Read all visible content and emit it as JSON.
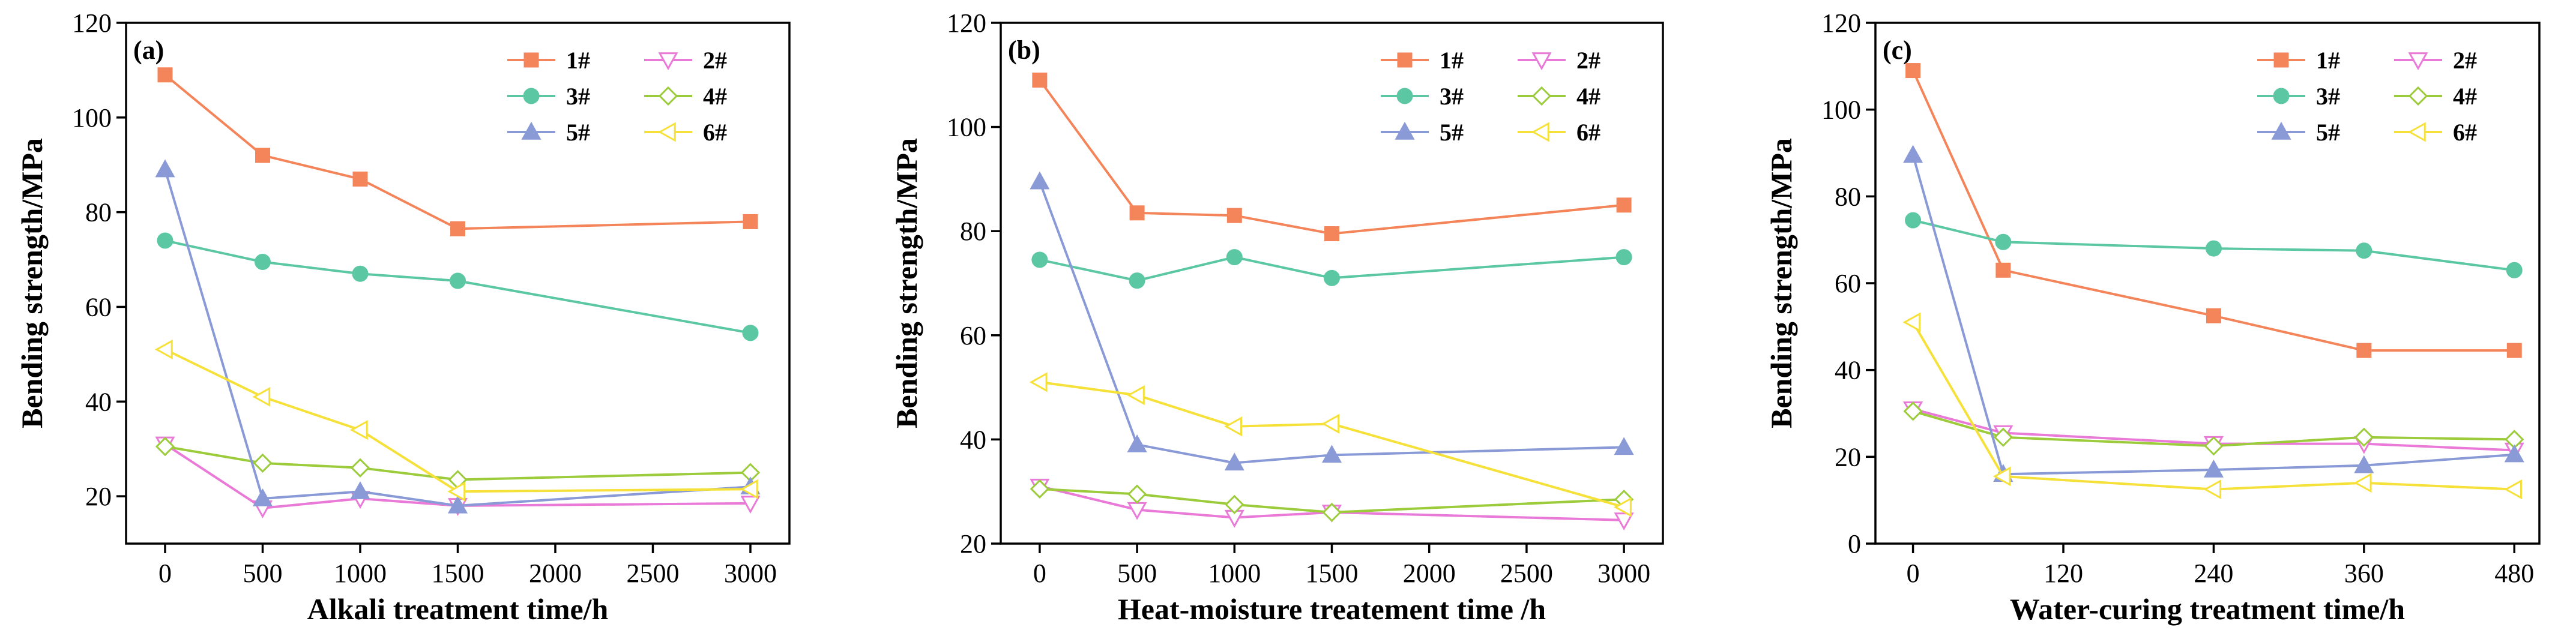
{
  "chart_data": [
    {
      "type": "line",
      "panel_label": "(a)",
      "xlabel": "Alkali treatment time/h",
      "ylabel": "Bending strength/MPa",
      "xlim": [
        -200,
        3200
      ],
      "ylim": [
        10,
        120
      ],
      "xticks": [
        0,
        500,
        1000,
        1500,
        2000,
        2500,
        3000
      ],
      "yticks": [
        20,
        40,
        60,
        80,
        100,
        120
      ],
      "legend_position": "top-right",
      "series": [
        {
          "name": "1#",
          "color": "#f4845a",
          "marker": "square",
          "x": [
            0,
            500,
            1000,
            1500,
            3000
          ],
          "values": [
            109,
            92,
            87,
            76.5,
            78
          ]
        },
        {
          "name": "2#",
          "color": "#e97ad8",
          "marker": "triangle-down",
          "x": [
            0,
            500,
            1000,
            1500,
            3000
          ],
          "values": [
            31,
            17.5,
            19.5,
            18,
            18.5
          ]
        },
        {
          "name": "3#",
          "color": "#5cc8a3",
          "marker": "circle",
          "x": [
            0,
            500,
            1000,
            1500,
            3000
          ],
          "values": [
            74,
            69.5,
            67,
            65.5,
            54.5
          ]
        },
        {
          "name": "4#",
          "color": "#9ccc3c",
          "marker": "diamond",
          "x": [
            0,
            500,
            1000,
            1500,
            3000
          ],
          "values": [
            30.5,
            27,
            26,
            23.5,
            25
          ]
        },
        {
          "name": "5#",
          "color": "#8a9ad6",
          "marker": "triangle-up",
          "x": [
            0,
            500,
            1000,
            1500,
            3000
          ],
          "values": [
            89,
            19.5,
            21,
            18,
            22
          ]
        },
        {
          "name": "6#",
          "color": "#f5e139",
          "marker": "triangle-left",
          "x": [
            0,
            500,
            1000,
            1500,
            3000
          ],
          "values": [
            51,
            41,
            34,
            21,
            21.5
          ]
        }
      ]
    },
    {
      "type": "line",
      "panel_label": "(b)",
      "xlabel": "Heat-moisture treatement time /h",
      "ylabel": "Bending strength/MPa",
      "xlim": [
        -200,
        3200
      ],
      "ylim": [
        20,
        120
      ],
      "xticks": [
        0,
        500,
        1000,
        1500,
        2000,
        2500,
        3000
      ],
      "yticks": [
        20,
        40,
        60,
        80,
        100,
        120
      ],
      "legend_position": "top-right",
      "series": [
        {
          "name": "1#",
          "color": "#f4845a",
          "marker": "square",
          "x": [
            0,
            500,
            1000,
            1500,
            3000
          ],
          "values": [
            109,
            83.5,
            83,
            79.5,
            85
          ]
        },
        {
          "name": "2#",
          "color": "#e97ad8",
          "marker": "triangle-down",
          "x": [
            0,
            500,
            1000,
            1500,
            3000
          ],
          "values": [
            31,
            26.5,
            25,
            26,
            24.5
          ]
        },
        {
          "name": "3#",
          "color": "#5cc8a3",
          "marker": "circle",
          "x": [
            0,
            500,
            1000,
            1500,
            3000
          ],
          "values": [
            74.5,
            70.5,
            75,
            71,
            75
          ]
        },
        {
          "name": "4#",
          "color": "#9ccc3c",
          "marker": "diamond",
          "x": [
            0,
            500,
            1000,
            1500,
            3000
          ],
          "values": [
            30.5,
            29.5,
            27.5,
            26,
            28.5
          ]
        },
        {
          "name": "5#",
          "color": "#8a9ad6",
          "marker": "triangle-up",
          "x": [
            0,
            500,
            1000,
            1500,
            3000
          ],
          "values": [
            89.5,
            39,
            35.5,
            37,
            38.5
          ]
        },
        {
          "name": "6#",
          "color": "#f5e139",
          "marker": "triangle-left",
          "x": [
            0,
            500,
            1000,
            1500,
            3000
          ],
          "values": [
            51,
            48.5,
            42.5,
            43,
            27
          ]
        }
      ]
    },
    {
      "type": "line",
      "panel_label": "(c)",
      "xlabel": "Water-curing treatment time/h",
      "ylabel": "Bending strength/MPa",
      "xlim": [
        -30,
        500
      ],
      "ylim": [
        0,
        120
      ],
      "xticks": [
        0,
        120,
        240,
        360,
        480
      ],
      "yticks": [
        0,
        20,
        40,
        60,
        80,
        100,
        120
      ],
      "legend_position": "top-right",
      "series": [
        {
          "name": "1#",
          "color": "#f4845a",
          "marker": "square",
          "x": [
            0,
            72,
            240,
            360,
            480
          ],
          "values": [
            109,
            63,
            52.5,
            44.5,
            44.5
          ]
        },
        {
          "name": "2#",
          "color": "#e97ad8",
          "marker": "triangle-down",
          "x": [
            0,
            72,
            240,
            360,
            480
          ],
          "values": [
            31,
            25.5,
            23,
            23,
            21.5
          ]
        },
        {
          "name": "3#",
          "color": "#5cc8a3",
          "marker": "circle",
          "x": [
            0,
            72,
            240,
            360,
            480
          ],
          "values": [
            74.5,
            69.5,
            68,
            67.5,
            63
          ]
        },
        {
          "name": "4#",
          "color": "#9ccc3c",
          "marker": "diamond",
          "x": [
            0,
            72,
            240,
            360,
            480
          ],
          "values": [
            30.5,
            24.5,
            22.5,
            24.5,
            24
          ]
        },
        {
          "name": "5#",
          "color": "#8a9ad6",
          "marker": "triangle-up",
          "x": [
            0,
            72,
            240,
            360,
            480
          ],
          "values": [
            89.5,
            16,
            17,
            18,
            20.5
          ]
        },
        {
          "name": "6#",
          "color": "#f5e139",
          "marker": "triangle-left",
          "x": [
            0,
            72,
            240,
            360,
            480
          ],
          "values": [
            51,
            15.5,
            12.5,
            14,
            12.5
          ]
        }
      ]
    }
  ]
}
